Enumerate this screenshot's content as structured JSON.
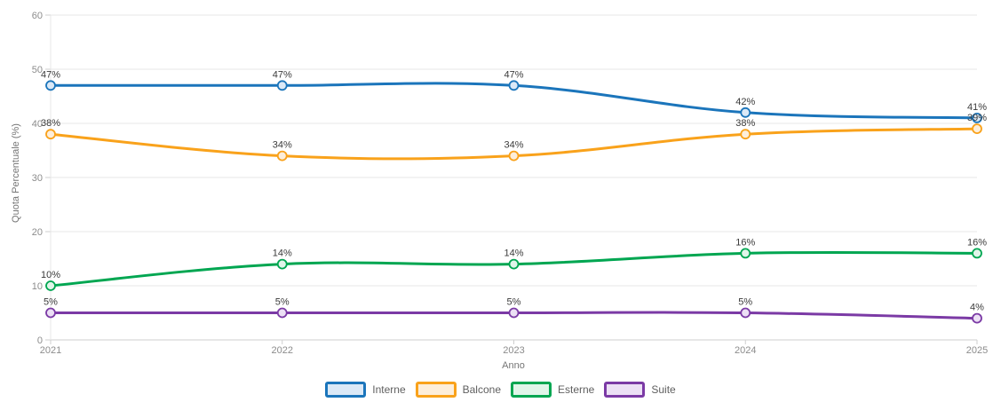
{
  "chart_data": {
    "type": "line",
    "x": [
      "2021",
      "2022",
      "2023",
      "2024",
      "2025"
    ],
    "series": [
      {
        "name": "Interne",
        "color": "#1b75bb",
        "fill": "#dbe9f7",
        "values": [
          47,
          47,
          47,
          42,
          41
        ]
      },
      {
        "name": "Balcone",
        "color": "#f9a21b",
        "fill": "#fdeeda",
        "values": [
          38,
          34,
          34,
          38,
          39
        ]
      },
      {
        "name": "Esterne",
        "color": "#00a651",
        "fill": "#e0f5e9",
        "values": [
          10,
          14,
          14,
          16,
          16
        ]
      },
      {
        "name": "Suite",
        "color": "#7b3aa5",
        "fill": "#ece0f5",
        "values": [
          5,
          5,
          5,
          5,
          4
        ]
      }
    ],
    "title": "",
    "xlabel": "Anno",
    "ylabel": "Quota Percentuale (%)",
    "ylim": [
      0,
      60
    ],
    "yticks": [
      0,
      10,
      20,
      30,
      40,
      50,
      60
    ],
    "data_label_format": "{v}%",
    "legend_position": "bottom",
    "grid": "horizontal",
    "smooth": true
  },
  "style_colors": {
    "gridline": "#e7e7e7",
    "axis_line": "#cfcfcf",
    "tick_label": "#8c8c8c",
    "axis_title": "#757575",
    "data_label": "#3a3a3a",
    "legend_label": "#5f5f5f",
    "background": "#ffffff"
  }
}
